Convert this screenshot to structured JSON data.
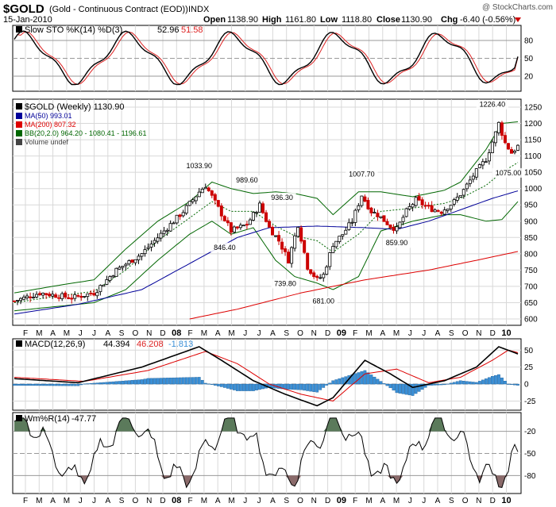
{
  "header": {
    "symbol": "$GOLD",
    "name": "(Gold - Continuous Contract (EOD))",
    "exchange": "INDX",
    "watermark": "@ StockCharts.com",
    "date": "15-Jan-2010",
    "open_label": "Open",
    "open": "1138.90",
    "high_label": "High",
    "high": "1161.80",
    "low_label": "Low",
    "low": "1118.80",
    "close_label": "Close",
    "close": "1130.90",
    "chg_label": "Chg",
    "chg": "-6.40 (-0.56%)"
  },
  "colors": {
    "up": "#000000",
    "down": "#cc0000",
    "k": "#000000",
    "d": "#dd2222",
    "ma50": "#000099",
    "ma200": "#dd0000",
    "bb": "#006600",
    "macd": "#000000",
    "signal": "#dd0000",
    "hist": "#3a8fd6",
    "wm_fill": "#5b7a5b"
  },
  "sto": {
    "label": "Slow STO %K(14) %D(3)",
    "k_value": "52.96",
    "d_value": "51.58",
    "ticks": [
      "80",
      "50",
      "20"
    ]
  },
  "price": {
    "label": "$GOLD (Weekly) 1130.90",
    "legend": [
      {
        "text": "MA(50) 993.01",
        "color": "#000099"
      },
      {
        "text": "MA(200) 807.32",
        "color": "#dd0000"
      },
      {
        "text": "BB(20,2.0) 964.20 - 1080.41 - 1196.61",
        "color": "#006600"
      },
      {
        "text": "Volume undef",
        "color": "#444444"
      }
    ],
    "ticks": [
      "1250",
      "1200",
      "1150",
      "1100",
      "1050",
      "1000",
      "950",
      "900",
      "850",
      "800",
      "750",
      "700",
      "650",
      "600"
    ],
    "annotations": [
      "1226.40",
      "1033.90",
      "989.60",
      "936.30",
      "1007.70",
      "1075.00",
      "846.40",
      "859.90",
      "739.80",
      "681.00"
    ]
  },
  "macd": {
    "label": "MACD(12,26,9)",
    "macd": "44.394",
    "signal": "46.208",
    "hist": "-1.813",
    "ticks": [
      "50",
      "25",
      "0",
      "-25"
    ]
  },
  "wmr": {
    "label": "Wm%R(14)",
    "value": "-47.77",
    "ticks": [
      "-20",
      "-50",
      "-80"
    ]
  },
  "x_axis": [
    "F",
    "M",
    "A",
    "M",
    "J",
    "J",
    "A",
    "S",
    "O",
    "N",
    "D",
    "08",
    "F",
    "M",
    "A",
    "M",
    "J",
    "J",
    "A",
    "S",
    "O",
    "N",
    "D",
    "09",
    "F",
    "M",
    "A",
    "M",
    "J",
    "J",
    "A",
    "S",
    "O",
    "N",
    "D",
    "10"
  ],
  "chart_data": {
    "type": "candlestick",
    "title": "$GOLD (Weekly)",
    "period": "Feb 2007 - Jan 2010",
    "price_range": [
      600,
      1250
    ],
    "anchors": [
      {
        "w": 0,
        "price": 655
      },
      {
        "w": 8,
        "price": 680
      },
      {
        "w": 18,
        "price": 665
      },
      {
        "w": 25,
        "price": 680
      },
      {
        "w": 32,
        "price": 750
      },
      {
        "w": 40,
        "price": 800
      },
      {
        "w": 48,
        "price": 880
      },
      {
        "w": 53,
        "price": 930
      },
      {
        "w": 58,
        "price": 990
      },
      {
        "w": 60,
        "price": 1010
      },
      {
        "w": 64,
        "price": 940
      },
      {
        "w": 68,
        "price": 870
      },
      {
        "w": 73,
        "price": 890
      },
      {
        "w": 77,
        "price": 950
      },
      {
        "w": 80,
        "price": 880
      },
      {
        "w": 83,
        "price": 840
      },
      {
        "w": 86,
        "price": 780
      },
      {
        "w": 89,
        "price": 890
      },
      {
        "w": 92,
        "price": 760
      },
      {
        "w": 95,
        "price": 720
      },
      {
        "w": 97,
        "price": 735
      },
      {
        "w": 100,
        "price": 830
      },
      {
        "w": 103,
        "price": 860
      },
      {
        "w": 106,
        "price": 900
      },
      {
        "w": 109,
        "price": 980
      },
      {
        "w": 112,
        "price": 930
      },
      {
        "w": 114,
        "price": 920
      },
      {
        "w": 118,
        "price": 885
      },
      {
        "w": 120,
        "price": 875
      },
      {
        "w": 123,
        "price": 930
      },
      {
        "w": 126,
        "price": 965
      },
      {
        "w": 130,
        "price": 940
      },
      {
        "w": 134,
        "price": 930
      },
      {
        "w": 138,
        "price": 960
      },
      {
        "w": 141,
        "price": 995
      },
      {
        "w": 144,
        "price": 1040
      },
      {
        "w": 148,
        "price": 1090
      },
      {
        "w": 151,
        "price": 1170
      },
      {
        "w": 152,
        "price": 1200
      },
      {
        "w": 154,
        "price": 1140
      },
      {
        "w": 156,
        "price": 1110
      },
      {
        "w": 158,
        "price": 1130
      }
    ],
    "ma50": [
      [
        0,
        615
      ],
      [
        20,
        645
      ],
      [
        40,
        690
      ],
      [
        55,
        770
      ],
      [
        70,
        850
      ],
      [
        80,
        880
      ],
      [
        95,
        885
      ],
      [
        110,
        880
      ],
      [
        120,
        875
      ],
      [
        130,
        900
      ],
      [
        140,
        935
      ],
      [
        150,
        970
      ],
      [
        158,
        993
      ]
    ],
    "ma200": [
      [
        55,
        600
      ],
      [
        70,
        630
      ],
      [
        90,
        680
      ],
      [
        110,
        720
      ],
      [
        130,
        750
      ],
      [
        145,
        780
      ],
      [
        158,
        807
      ]
    ],
    "bb_upper": [
      [
        0,
        680
      ],
      [
        15,
        705
      ],
      [
        25,
        720
      ],
      [
        35,
        815
      ],
      [
        45,
        900
      ],
      [
        55,
        960
      ],
      [
        62,
        1020
      ],
      [
        68,
        1000
      ],
      [
        75,
        985
      ],
      [
        82,
        990
      ],
      [
        88,
        985
      ],
      [
        95,
        970
      ],
      [
        100,
        920
      ],
      [
        108,
        990
      ],
      [
        115,
        990
      ],
      [
        125,
        975
      ],
      [
        135,
        995
      ],
      [
        140,
        1020
      ],
      [
        148,
        1120
      ],
      [
        153,
        1200
      ],
      [
        158,
        1205
      ]
    ],
    "bb_lower": [
      [
        0,
        625
      ],
      [
        15,
        640
      ],
      [
        25,
        650
      ],
      [
        35,
        690
      ],
      [
        45,
        780
      ],
      [
        55,
        860
      ],
      [
        62,
        900
      ],
      [
        68,
        860
      ],
      [
        75,
        880
      ],
      [
        82,
        780
      ],
      [
        88,
        730
      ],
      [
        95,
        710
      ],
      [
        100,
        690
      ],
      [
        108,
        730
      ],
      [
        115,
        870
      ],
      [
        125,
        900
      ],
      [
        135,
        920
      ],
      [
        140,
        920
      ],
      [
        148,
        900
      ],
      [
        153,
        905
      ],
      [
        158,
        960
      ]
    ],
    "bb_mid": [
      [
        0,
        650
      ],
      [
        15,
        672
      ],
      [
        25,
        685
      ],
      [
        35,
        750
      ],
      [
        45,
        840
      ],
      [
        55,
        910
      ],
      [
        62,
        960
      ],
      [
        68,
        930
      ],
      [
        75,
        930
      ],
      [
        82,
        885
      ],
      [
        88,
        855
      ],
      [
        95,
        840
      ],
      [
        100,
        805
      ],
      [
        108,
        860
      ],
      [
        115,
        930
      ],
      [
        125,
        940
      ],
      [
        135,
        955
      ],
      [
        140,
        970
      ],
      [
        148,
        1010
      ],
      [
        153,
        1050
      ],
      [
        158,
        1080
      ]
    ],
    "sto_k_end": 52.96,
    "sto_d_end": 51.58,
    "macd_end": 44.394,
    "signal_end": 46.208,
    "hist_end": -1.813,
    "wmr_end": -47.77
  }
}
